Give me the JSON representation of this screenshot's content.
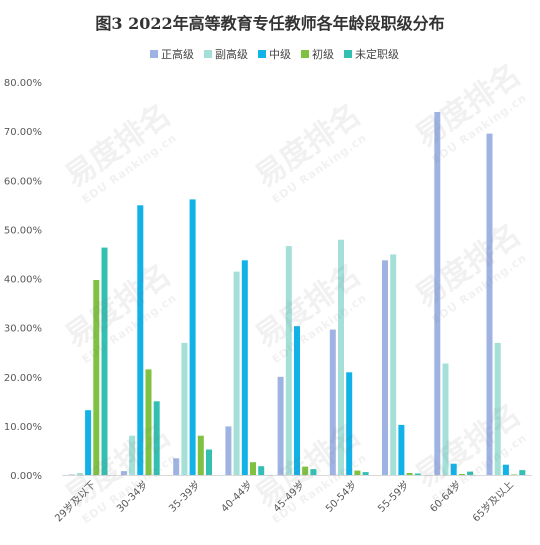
{
  "title": "图3  2022年高等教育专任教师各年龄段职级分布",
  "watermark": {
    "text": "易度排名",
    "sub": "EDU Ranking.cn"
  },
  "chart_data": {
    "type": "bar",
    "title": "图3  2022年高等教育专任教师各年龄段职级分布",
    "categories": [
      "29岁及以下",
      "30-34岁",
      "35-39岁",
      "40-44岁",
      "45-49岁",
      "50-54岁",
      "55-59岁",
      "60-64岁",
      "65岁及以上"
    ],
    "ylim": [
      0,
      80
    ],
    "yticks": [
      "0.00%",
      "10.00%",
      "20.00%",
      "30.00%",
      "40.00%",
      "50.00%",
      "60.00%",
      "70.00%",
      "80.00%"
    ],
    "grid": false,
    "legend_position": "top",
    "series": [
      {
        "name": "正高级",
        "color": "#9fb3e3",
        "values": [
          0.1,
          0.8,
          3.4,
          9.9,
          20.0,
          29.6,
          43.7,
          73.9,
          69.5
        ]
      },
      {
        "name": "副高级",
        "color": "#a4e0d8",
        "values": [
          0.4,
          8.0,
          26.9,
          41.4,
          46.6,
          47.9,
          44.9,
          22.7,
          26.9
        ]
      },
      {
        "name": "中级",
        "color": "#10b2e8",
        "values": [
          13.2,
          54.9,
          56.1,
          43.7,
          30.3,
          20.9,
          10.2,
          2.3,
          2.1
        ]
      },
      {
        "name": "初级",
        "color": "#7fc241",
        "values": [
          39.7,
          21.5,
          8.0,
          2.6,
          1.7,
          0.9,
          0.4,
          0.2,
          0.1
        ]
      },
      {
        "name": "未定职级",
        "color": "#33c0b2",
        "values": [
          46.3,
          15.0,
          5.2,
          1.8,
          1.2,
          0.6,
          0.3,
          0.7,
          1.0
        ]
      }
    ]
  }
}
